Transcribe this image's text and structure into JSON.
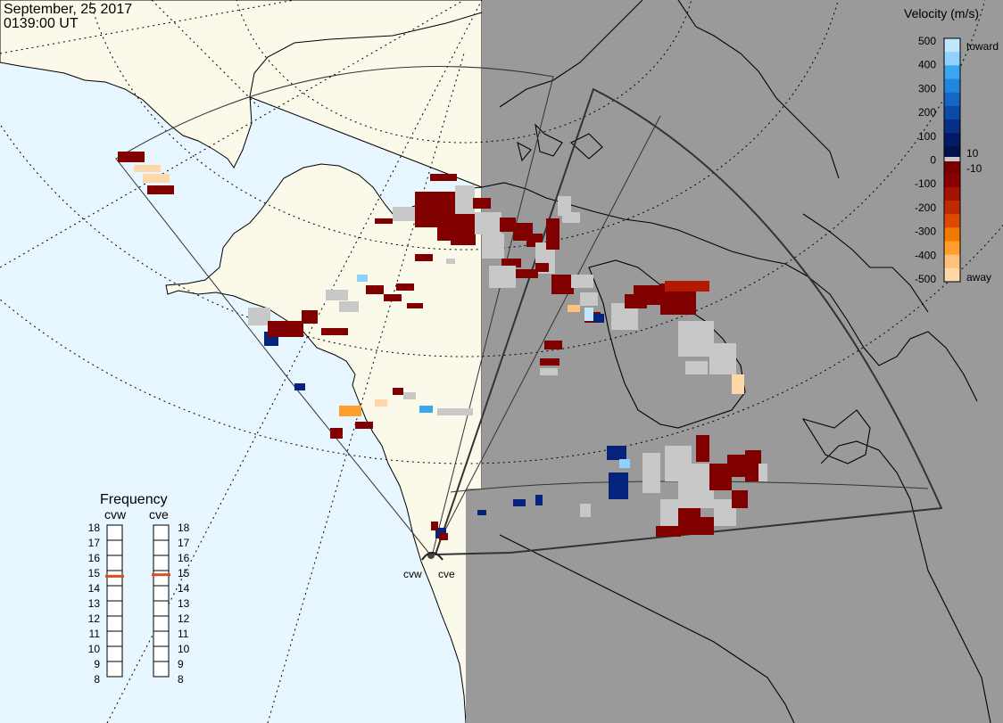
{
  "header": {
    "date": "September, 25 2017",
    "time": "0139:00 UT"
  },
  "velocity_scale": {
    "title": "Velocity (m/s)",
    "ticks": [
      "500",
      "400",
      "300",
      "200",
      "100",
      "0",
      "-100",
      "-200",
      "-300",
      "-400",
      "-500"
    ],
    "inner_ticks": [
      "10",
      "-10"
    ],
    "toward_label": "toward",
    "away_label": "away",
    "colors_top_to_bottom": [
      "#bfe8ff",
      "#8fd2ff",
      "#3aa6f0",
      "#1f86e0",
      "#1567c6",
      "#0c4aa8",
      "#082f86",
      "#041a66",
      "#02104c",
      "#7a0000",
      "#8a0000",
      "#a31300",
      "#c02a00",
      "#dc4a00",
      "#f07a00",
      "#ff9e2a",
      "#ffc27a",
      "#ffd7a8"
    ],
    "zero_band_color": "#c8c8c8"
  },
  "frequency": {
    "title": "Frequency",
    "left_radar": "cvw",
    "right_radar": "cve",
    "ticks": [
      "18",
      "17",
      "16",
      "15",
      "14",
      "13",
      "12",
      "11",
      "10",
      "9",
      "8"
    ],
    "cvw_value": 14.8,
    "cve_value": 14.9,
    "indicator_color": "#d8501e"
  },
  "radars": {
    "left_label": "cvw",
    "right_label": "cve"
  },
  "colors": {
    "ocean": "#e8f6ff",
    "land_day": "#fbf9ea",
    "night": "#9a9a9a",
    "ground_scatter": "#c8c8c8",
    "away_dark": "#800000",
    "toward_dark": "#06237c"
  }
}
